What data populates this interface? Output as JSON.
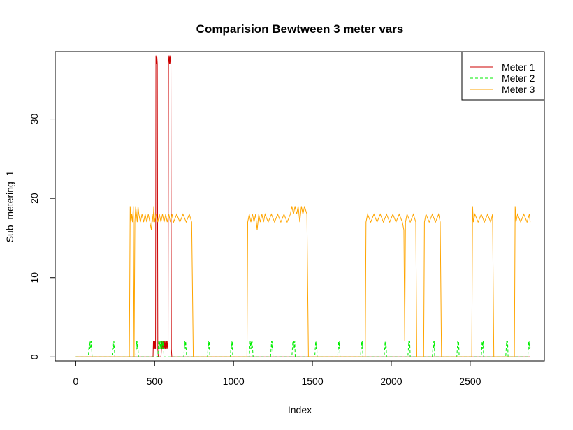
{
  "chart_data": {
    "type": "line",
    "title": "Comparision Bewtween 3 meter vars",
    "xlabel": "Index",
    "ylabel": "Sub_metering_1",
    "xlim": [
      -130,
      2970
    ],
    "ylim": [
      -0.5,
      38.5
    ],
    "x_ticks": [
      0,
      500,
      1000,
      1500,
      2000,
      2500
    ],
    "y_ticks": [
      0,
      10,
      20,
      30
    ],
    "legend_position": "top-right",
    "grid": false,
    "series": [
      {
        "name": "Meter 1",
        "color": "#cc0000",
        "style": "solid",
        "points": [
          [
            0,
            0
          ],
          [
            490,
            0
          ],
          [
            492,
            2
          ],
          [
            495,
            1
          ],
          [
            498,
            2
          ],
          [
            500,
            1
          ],
          [
            503,
            2
          ],
          [
            506,
            1
          ],
          [
            508,
            38
          ],
          [
            511,
            37
          ],
          [
            514,
            38
          ],
          [
            517,
            37
          ],
          [
            520,
            1
          ],
          [
            523,
            0
          ],
          [
            540,
            0
          ],
          [
            543,
            1
          ],
          [
            546,
            2
          ],
          [
            549,
            1
          ],
          [
            552,
            2
          ],
          [
            555,
            1
          ],
          [
            558,
            2
          ],
          [
            561,
            1
          ],
          [
            564,
            2
          ],
          [
            567,
            1
          ],
          [
            570,
            2
          ],
          [
            573,
            1
          ],
          [
            576,
            2
          ],
          [
            579,
            1
          ],
          [
            582,
            2
          ],
          [
            585,
            1
          ],
          [
            588,
            37
          ],
          [
            591,
            38
          ],
          [
            594,
            37
          ],
          [
            597,
            38
          ],
          [
            600,
            37
          ],
          [
            603,
            38
          ],
          [
            606,
            1
          ],
          [
            609,
            0
          ],
          [
            2880,
            0
          ]
        ]
      },
      {
        "name": "Meter 2",
        "color": "#00ee00",
        "style": "dashed",
        "points": [
          [
            0,
            0
          ],
          [
            80,
            0
          ],
          [
            83,
            1
          ],
          [
            86,
            2
          ],
          [
            89,
            1
          ],
          [
            92,
            2
          ],
          [
            95,
            1
          ],
          [
            98,
            2
          ],
          [
            101,
            1
          ],
          [
            104,
            0
          ],
          [
            230,
            0
          ],
          [
            233,
            1
          ],
          [
            236,
            2
          ],
          [
            239,
            1
          ],
          [
            242,
            2
          ],
          [
            245,
            1
          ],
          [
            248,
            0
          ],
          [
            380,
            0
          ],
          [
            383,
            1
          ],
          [
            386,
            2
          ],
          [
            389,
            1
          ],
          [
            392,
            2
          ],
          [
            395,
            1
          ],
          [
            398,
            0
          ],
          [
            520,
            0
          ],
          [
            523,
            1
          ],
          [
            526,
            2
          ],
          [
            529,
            1
          ],
          [
            532,
            2
          ],
          [
            535,
            1
          ],
          [
            538,
            2
          ],
          [
            541,
            1
          ],
          [
            544,
            2
          ],
          [
            547,
            1
          ],
          [
            550,
            2
          ],
          [
            553,
            1
          ],
          [
            556,
            2
          ],
          [
            559,
            0
          ],
          [
            685,
            0
          ],
          [
            688,
            1
          ],
          [
            691,
            2
          ],
          [
            694,
            1
          ],
          [
            697,
            2
          ],
          [
            700,
            1
          ],
          [
            703,
            0
          ],
          [
            835,
            0
          ],
          [
            838,
            1
          ],
          [
            841,
            2
          ],
          [
            844,
            1
          ],
          [
            847,
            2
          ],
          [
            850,
            0
          ],
          [
            980,
            0
          ],
          [
            983,
            1
          ],
          [
            986,
            2
          ],
          [
            989,
            1
          ],
          [
            992,
            2
          ],
          [
            995,
            0
          ],
          [
            1100,
            0
          ],
          [
            1103,
            1
          ],
          [
            1106,
            2
          ],
          [
            1109,
            1
          ],
          [
            1112,
            2
          ],
          [
            1115,
            1
          ],
          [
            1118,
            2
          ],
          [
            1121,
            1
          ],
          [
            1124,
            0
          ],
          [
            1235,
            0
          ],
          [
            1238,
            1
          ],
          [
            1241,
            2
          ],
          [
            1244,
            1
          ],
          [
            1247,
            2
          ],
          [
            1250,
            0
          ],
          [
            1370,
            0
          ],
          [
            1373,
            1
          ],
          [
            1376,
            2
          ],
          [
            1379,
            1
          ],
          [
            1382,
            2
          ],
          [
            1385,
            1
          ],
          [
            1388,
            2
          ],
          [
            1391,
            0
          ],
          [
            1515,
            0
          ],
          [
            1518,
            1
          ],
          [
            1521,
            2
          ],
          [
            1524,
            1
          ],
          [
            1527,
            2
          ],
          [
            1530,
            0
          ],
          [
            1660,
            0
          ],
          [
            1663,
            1
          ],
          [
            1666,
            2
          ],
          [
            1669,
            1
          ],
          [
            1672,
            2
          ],
          [
            1675,
            0
          ],
          [
            1805,
            0
          ],
          [
            1808,
            1
          ],
          [
            1811,
            2
          ],
          [
            1814,
            1
          ],
          [
            1817,
            2
          ],
          [
            1820,
            0
          ],
          [
            1955,
            0
          ],
          [
            1958,
            1
          ],
          [
            1961,
            2
          ],
          [
            1964,
            1
          ],
          [
            1967,
            2
          ],
          [
            1970,
            0
          ],
          [
            2105,
            0
          ],
          [
            2108,
            1
          ],
          [
            2111,
            2
          ],
          [
            2114,
            1
          ],
          [
            2117,
            2
          ],
          [
            2120,
            0
          ],
          [
            2260,
            0
          ],
          [
            2263,
            1
          ],
          [
            2266,
            2
          ],
          [
            2269,
            1
          ],
          [
            2272,
            2
          ],
          [
            2275,
            0
          ],
          [
            2415,
            0
          ],
          [
            2418,
            1
          ],
          [
            2421,
            2
          ],
          [
            2424,
            1
          ],
          [
            2427,
            2
          ],
          [
            2430,
            0
          ],
          [
            2570,
            0
          ],
          [
            2573,
            1
          ],
          [
            2576,
            2
          ],
          [
            2579,
            1
          ],
          [
            2582,
            2
          ],
          [
            2585,
            0
          ],
          [
            2725,
            0
          ],
          [
            2728,
            1
          ],
          [
            2731,
            2
          ],
          [
            2734,
            1
          ],
          [
            2737,
            2
          ],
          [
            2740,
            0
          ],
          [
            2865,
            0
          ],
          [
            2868,
            1
          ],
          [
            2871,
            2
          ],
          [
            2874,
            1
          ],
          [
            2877,
            2
          ],
          [
            2880,
            1
          ]
        ]
      },
      {
        "name": "Meter 3",
        "color": "#ffa500",
        "style": "solid",
        "points": [
          [
            0,
            0
          ],
          [
            340,
            0
          ],
          [
            345,
            19
          ],
          [
            350,
            17
          ],
          [
            355,
            18
          ],
          [
            360,
            17
          ],
          [
            365,
            19
          ],
          [
            370,
            0
          ],
          [
            375,
            17
          ],
          [
            380,
            19
          ],
          [
            385,
            18
          ],
          [
            390,
            17
          ],
          [
            395,
            19
          ],
          [
            400,
            18
          ],
          [
            410,
            17
          ],
          [
            420,
            18
          ],
          [
            430,
            17
          ],
          [
            440,
            18
          ],
          [
            450,
            17
          ],
          [
            460,
            18
          ],
          [
            470,
            17
          ],
          [
            480,
            16
          ],
          [
            485,
            18
          ],
          [
            490,
            17
          ],
          [
            495,
            19
          ],
          [
            500,
            17
          ],
          [
            510,
            18
          ],
          [
            520,
            17
          ],
          [
            530,
            18
          ],
          [
            540,
            17
          ],
          [
            550,
            18
          ],
          [
            560,
            17
          ],
          [
            570,
            18
          ],
          [
            580,
            17
          ],
          [
            590,
            18
          ],
          [
            600,
            17
          ],
          [
            610,
            18
          ],
          [
            620,
            17
          ],
          [
            640,
            18
          ],
          [
            660,
            17
          ],
          [
            680,
            18
          ],
          [
            700,
            17
          ],
          [
            720,
            18
          ],
          [
            735,
            17
          ],
          [
            745,
            0
          ],
          [
            1085,
            0
          ],
          [
            1090,
            17
          ],
          [
            1100,
            18
          ],
          [
            1110,
            17
          ],
          [
            1120,
            18
          ],
          [
            1130,
            17
          ],
          [
            1140,
            18
          ],
          [
            1150,
            16
          ],
          [
            1160,
            18
          ],
          [
            1170,
            17
          ],
          [
            1180,
            18
          ],
          [
            1190,
            17
          ],
          [
            1200,
            18
          ],
          [
            1220,
            17
          ],
          [
            1240,
            18
          ],
          [
            1260,
            17
          ],
          [
            1280,
            18
          ],
          [
            1300,
            17
          ],
          [
            1320,
            18
          ],
          [
            1340,
            17
          ],
          [
            1360,
            18
          ],
          [
            1370,
            19
          ],
          [
            1380,
            18
          ],
          [
            1390,
            19
          ],
          [
            1400,
            18
          ],
          [
            1410,
            19
          ],
          [
            1420,
            17
          ],
          [
            1430,
            19
          ],
          [
            1440,
            18
          ],
          [
            1450,
            19
          ],
          [
            1465,
            18
          ],
          [
            1475,
            0
          ],
          [
            1835,
            0
          ],
          [
            1840,
            17
          ],
          [
            1850,
            18
          ],
          [
            1870,
            17
          ],
          [
            1890,
            18
          ],
          [
            1910,
            17
          ],
          [
            1930,
            18
          ],
          [
            1950,
            17
          ],
          [
            1970,
            18
          ],
          [
            1990,
            17
          ],
          [
            2010,
            18
          ],
          [
            2030,
            17
          ],
          [
            2050,
            18
          ],
          [
            2070,
            17
          ],
          [
            2080,
            16
          ],
          [
            2085,
            2
          ],
          [
            2090,
            17
          ],
          [
            2100,
            18
          ],
          [
            2120,
            17
          ],
          [
            2140,
            18
          ],
          [
            2155,
            17
          ],
          [
            2162,
            0
          ],
          [
            2205,
            0
          ],
          [
            2210,
            17
          ],
          [
            2220,
            18
          ],
          [
            2240,
            17
          ],
          [
            2260,
            18
          ],
          [
            2280,
            17
          ],
          [
            2300,
            18
          ],
          [
            2310,
            17
          ],
          [
            2318,
            0
          ],
          [
            2510,
            0
          ],
          [
            2515,
            19
          ],
          [
            2520,
            17
          ],
          [
            2530,
            18
          ],
          [
            2550,
            17
          ],
          [
            2570,
            18
          ],
          [
            2590,
            17
          ],
          [
            2610,
            18
          ],
          [
            2630,
            17
          ],
          [
            2642,
            18
          ],
          [
            2650,
            0
          ],
          [
            2780,
            0
          ],
          [
            2785,
            19
          ],
          [
            2790,
            17
          ],
          [
            2800,
            18
          ],
          [
            2820,
            17
          ],
          [
            2840,
            18
          ],
          [
            2860,
            17
          ],
          [
            2875,
            18
          ],
          [
            2880,
            17
          ]
        ]
      }
    ]
  }
}
